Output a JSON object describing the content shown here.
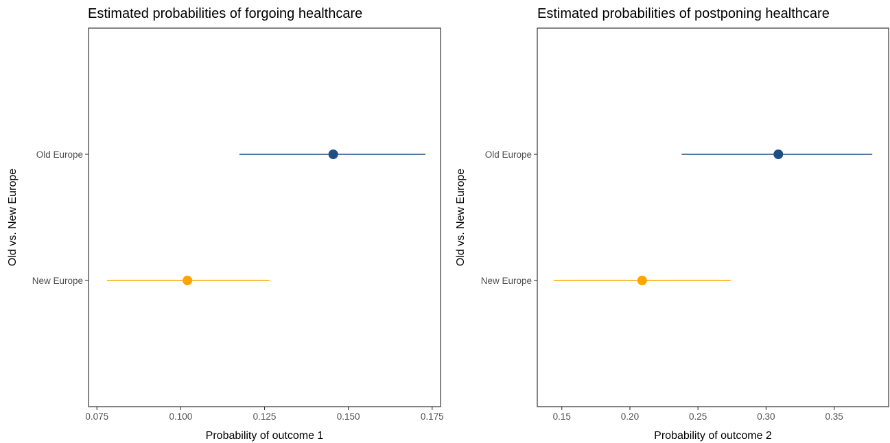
{
  "chart_data": [
    {
      "type": "scatter",
      "title": "Estimated probabilities of forgoing healthcare",
      "xlabel": "Probability of outcome 1",
      "ylabel": "Old vs. New Europe",
      "xlim": [
        0.0725,
        0.1775
      ],
      "x_ticks": [
        "0.075",
        "0.100",
        "0.125",
        "0.150",
        "0.175"
      ],
      "categories": [
        "Old Europe",
        "New Europe"
      ],
      "grid": false,
      "legend": "none",
      "points": [
        {
          "category": "Old Europe",
          "estimate": 0.1455,
          "lower": 0.1175,
          "upper": 0.173,
          "color": "#1f4e84"
        },
        {
          "category": "New Europe",
          "estimate": 0.102,
          "lower": 0.078,
          "upper": 0.1265,
          "color": "#ffa500"
        }
      ]
    },
    {
      "type": "scatter",
      "title": "Estimated probabilities of postponing healthcare",
      "xlabel": "Probability of outcome 2",
      "ylabel": "Old vs. New Europe",
      "xlim": [
        0.132,
        0.39
      ],
      "x_ticks": [
        "0.15",
        "0.20",
        "0.25",
        "0.30",
        "0.35"
      ],
      "categories": [
        "Old Europe",
        "New Europe"
      ],
      "grid": false,
      "legend": "none",
      "points": [
        {
          "category": "Old Europe",
          "estimate": 0.309,
          "lower": 0.238,
          "upper": 0.378,
          "color": "#1f4e84"
        },
        {
          "category": "New Europe",
          "estimate": 0.209,
          "lower": 0.144,
          "upper": 0.274,
          "color": "#ffa500"
        }
      ]
    }
  ]
}
